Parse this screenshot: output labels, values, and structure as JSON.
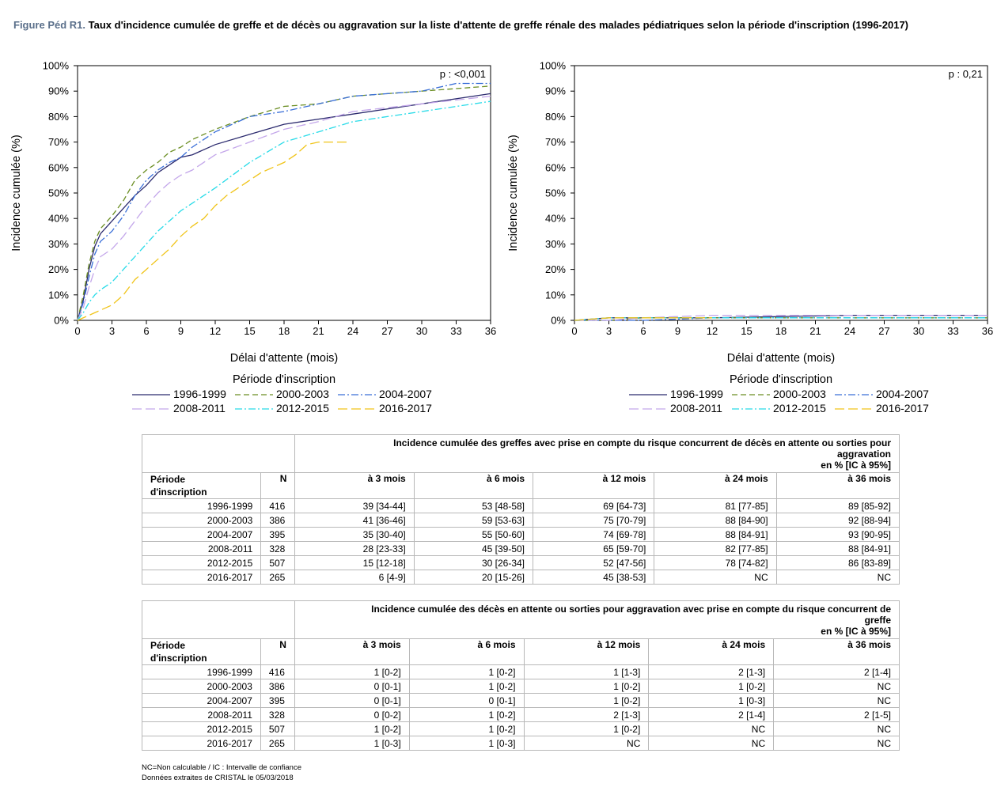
{
  "figure": {
    "label": "Figure Péd R1.",
    "title": "Taux d'incidence cumulée de greffe et de décès ou aggravation sur la liste d'attente de greffe rénale des malades pédiatriques selon la période d'inscription (1996-2017)"
  },
  "chart_data": [
    {
      "type": "line",
      "title": "",
      "xlabel": "Délai d'attente (mois)",
      "ylabel": "Incidence cumulée (%)",
      "xlim": [
        0,
        36
      ],
      "ylim": [
        0,
        100
      ],
      "xticks": [
        "0",
        "3",
        "6",
        "9",
        "12",
        "15",
        "18",
        "21",
        "24",
        "27",
        "30",
        "33",
        "36"
      ],
      "yticks": [
        "0%",
        "10%",
        "20%",
        "30%",
        "40%",
        "50%",
        "60%",
        "70%",
        "80%",
        "90%",
        "100%"
      ],
      "pvalue": "p : <0,001",
      "legend_title": "Période d'inscription",
      "legend_position": "bottom",
      "grid": false,
      "series": [
        {
          "name": "1996-1999",
          "color": "#2b2a6e",
          "dash": "solid",
          "x": [
            0,
            0.5,
            1,
            1.5,
            2,
            3,
            4,
            5,
            6,
            7,
            8,
            9,
            10,
            12,
            15,
            18,
            21,
            24,
            30,
            36
          ],
          "y": [
            0,
            8,
            20,
            29,
            34,
            39,
            44,
            49,
            53,
            58,
            61,
            64,
            65,
            69,
            73,
            77,
            79,
            81,
            85,
            89
          ]
        },
        {
          "name": "2000-2003",
          "color": "#6b8e23",
          "dash": "dash",
          "x": [
            0,
            0.5,
            1,
            1.5,
            2,
            3,
            4,
            5,
            6,
            7,
            8,
            9,
            10,
            12,
            15,
            18,
            21,
            24,
            30,
            36
          ],
          "y": [
            0,
            10,
            22,
            31,
            36,
            41,
            47,
            55,
            59,
            62,
            66,
            68,
            71,
            75,
            80,
            84,
            85,
            88,
            90,
            92
          ]
        },
        {
          "name": "2004-2007",
          "color": "#3a6fd8",
          "dash": "dashdot",
          "x": [
            0,
            0.5,
            1,
            1.5,
            2,
            3,
            4,
            5,
            6,
            7,
            8,
            9,
            10,
            12,
            15,
            18,
            21,
            24,
            30,
            33,
            36
          ],
          "y": [
            0,
            7,
            17,
            26,
            31,
            35,
            41,
            49,
            55,
            59,
            62,
            64,
            68,
            74,
            80,
            82,
            85,
            88,
            90,
            93,
            93
          ]
        },
        {
          "name": "2008-2011",
          "color": "#c3a6ea",
          "dash": "longdash",
          "x": [
            0,
            0.5,
            1,
            1.5,
            2,
            3,
            4,
            5,
            6,
            7,
            8,
            9,
            10,
            12,
            15,
            18,
            21,
            24,
            30,
            36
          ],
          "y": [
            0,
            5,
            13,
            20,
            25,
            28,
            33,
            39,
            45,
            50,
            54,
            57,
            59,
            65,
            70,
            75,
            78,
            82,
            85,
            88
          ]
        },
        {
          "name": "2012-2015",
          "color": "#27dbe8",
          "dash": "dashdot",
          "x": [
            0,
            0.5,
            1,
            1.5,
            2,
            3,
            4,
            5,
            6,
            7,
            8,
            9,
            10,
            12,
            15,
            18,
            21,
            24,
            30,
            36
          ],
          "y": [
            0,
            3,
            7,
            10,
            12,
            15,
            20,
            25,
            30,
            35,
            39,
            43,
            46,
            52,
            62,
            70,
            74,
            78,
            82,
            86
          ]
        },
        {
          "name": "2016-2017",
          "color": "#f0c419",
          "dash": "longdash",
          "x": [
            0,
            1,
            2,
            3,
            4,
            5,
            6,
            7,
            8,
            9,
            10,
            11,
            12,
            13,
            14,
            15,
            16,
            17,
            18,
            19,
            20,
            21,
            22,
            23.5
          ],
          "y": [
            0,
            2,
            4,
            6,
            10,
            16,
            20,
            24,
            28,
            33,
            37,
            40,
            45,
            49,
            52,
            55,
            58,
            60,
            62,
            65,
            69,
            70,
            70,
            70
          ]
        }
      ]
    },
    {
      "type": "line",
      "title": "",
      "xlabel": "Délai d'attente (mois)",
      "ylabel": "Incidence cumulée (%)",
      "xlim": [
        0,
        36
      ],
      "ylim": [
        0,
        100
      ],
      "xticks": [
        "0",
        "3",
        "6",
        "9",
        "12",
        "15",
        "18",
        "21",
        "24",
        "27",
        "30",
        "33",
        "36"
      ],
      "yticks": [
        "0%",
        "10%",
        "20%",
        "30%",
        "40%",
        "50%",
        "60%",
        "70%",
        "80%",
        "90%",
        "100%"
      ],
      "pvalue": "p : 0,21",
      "legend_title": "Période d'inscription",
      "legend_position": "bottom",
      "grid": false,
      "series": [
        {
          "name": "1996-1999",
          "color": "#2b2a6e",
          "dash": "solid",
          "x": [
            0,
            3,
            6,
            12,
            24,
            36
          ],
          "y": [
            0,
            1,
            1,
            1,
            2,
            2
          ]
        },
        {
          "name": "2000-2003",
          "color": "#6b8e23",
          "dash": "dash",
          "x": [
            0,
            3,
            6,
            12,
            24,
            36
          ],
          "y": [
            0,
            0,
            1,
            1,
            1,
            1
          ]
        },
        {
          "name": "2004-2007",
          "color": "#3a6fd8",
          "dash": "dashdot",
          "x": [
            0,
            3,
            6,
            12,
            24,
            36
          ],
          "y": [
            0,
            0,
            0,
            1,
            1,
            1
          ]
        },
        {
          "name": "2008-2011",
          "color": "#c3a6ea",
          "dash": "longdash",
          "x": [
            0,
            3,
            6,
            12,
            24,
            36
          ],
          "y": [
            0,
            0,
            1,
            2,
            2,
            2
          ]
        },
        {
          "name": "2012-2015",
          "color": "#27dbe8",
          "dash": "dashdot",
          "x": [
            0,
            3,
            6,
            12,
            24,
            36
          ],
          "y": [
            0,
            1,
            1,
            1,
            1,
            1
          ]
        },
        {
          "name": "2016-2017",
          "color": "#f0c419",
          "dash": "longdash",
          "x": [
            0,
            3,
            6,
            12
          ],
          "y": [
            0,
            1,
            1,
            1
          ]
        }
      ]
    }
  ],
  "tables": [
    {
      "caption_lines": [
        "Incidence cumulée des greffes avec prise en compte du risque concurrent de décès en attente ou sorties pour",
        "aggravation",
        "en % [IC à 95%]"
      ],
      "col_period": [
        "Période",
        "d'inscription"
      ],
      "col_n": "N",
      "cols": [
        "à 3 mois",
        "à 6 mois",
        "à 12 mois",
        "à 24 mois",
        "à 36 mois"
      ],
      "rows": [
        [
          "1996-1999",
          "416",
          "39 [34-44]",
          "53 [48-58]",
          "69 [64-73]",
          "81 [77-85]",
          "89 [85-92]"
        ],
        [
          "2000-2003",
          "386",
          "41 [36-46]",
          "59 [53-63]",
          "75 [70-79]",
          "88 [84-90]",
          "92 [88-94]"
        ],
        [
          "2004-2007",
          "395",
          "35 [30-40]",
          "55 [50-60]",
          "74 [69-78]",
          "88 [84-91]",
          "93 [90-95]"
        ],
        [
          "2008-2011",
          "328",
          "28 [23-33]",
          "45 [39-50]",
          "65 [59-70]",
          "82 [77-85]",
          "88 [84-91]"
        ],
        [
          "2012-2015",
          "507",
          "15 [12-18]",
          "30 [26-34]",
          "52 [47-56]",
          "78 [74-82]",
          "86 [83-89]"
        ],
        [
          "2016-2017",
          "265",
          "6 [4-9]",
          "20 [15-26]",
          "45 [38-53]",
          "NC",
          "NC"
        ]
      ]
    },
    {
      "caption_lines": [
        "Incidence cumulée des décès en attente ou sorties pour aggravation avec prise en compte du risque concurrent de",
        "greffe",
        "en % [IC à 95%]"
      ],
      "col_period": [
        "Période",
        "d'inscription"
      ],
      "col_n": "N",
      "cols": [
        "à 3 mois",
        "à 6 mois",
        "à 12 mois",
        "à 24 mois",
        "à 36 mois"
      ],
      "rows": [
        [
          "1996-1999",
          "416",
          "1 [0-2]",
          "1 [0-2]",
          "1 [1-3]",
          "2 [1-3]",
          "2 [1-4]"
        ],
        [
          "2000-2003",
          "386",
          "0 [0-1]",
          "1 [0-2]",
          "1 [0-2]",
          "1 [0-2]",
          "NC"
        ],
        [
          "2004-2007",
          "395",
          "0 [0-1]",
          "0 [0-1]",
          "1 [0-2]",
          "1 [0-3]",
          "NC"
        ],
        [
          "2008-2011",
          "328",
          "0 [0-2]",
          "1 [0-2]",
          "2 [1-3]",
          "2 [1-4]",
          "2 [1-5]"
        ],
        [
          "2012-2015",
          "507",
          "1 [0-2]",
          "1 [0-2]",
          "1 [0-2]",
          "NC",
          "NC"
        ],
        [
          "2016-2017",
          "265",
          "1 [0-3]",
          "1 [0-3]",
          "NC",
          "NC",
          "NC"
        ]
      ]
    }
  ],
  "notes": [
    "NC=Non calculable / IC : Intervalle de confiance",
    "Données extraites de CRISTAL le 05/03/2018"
  ]
}
